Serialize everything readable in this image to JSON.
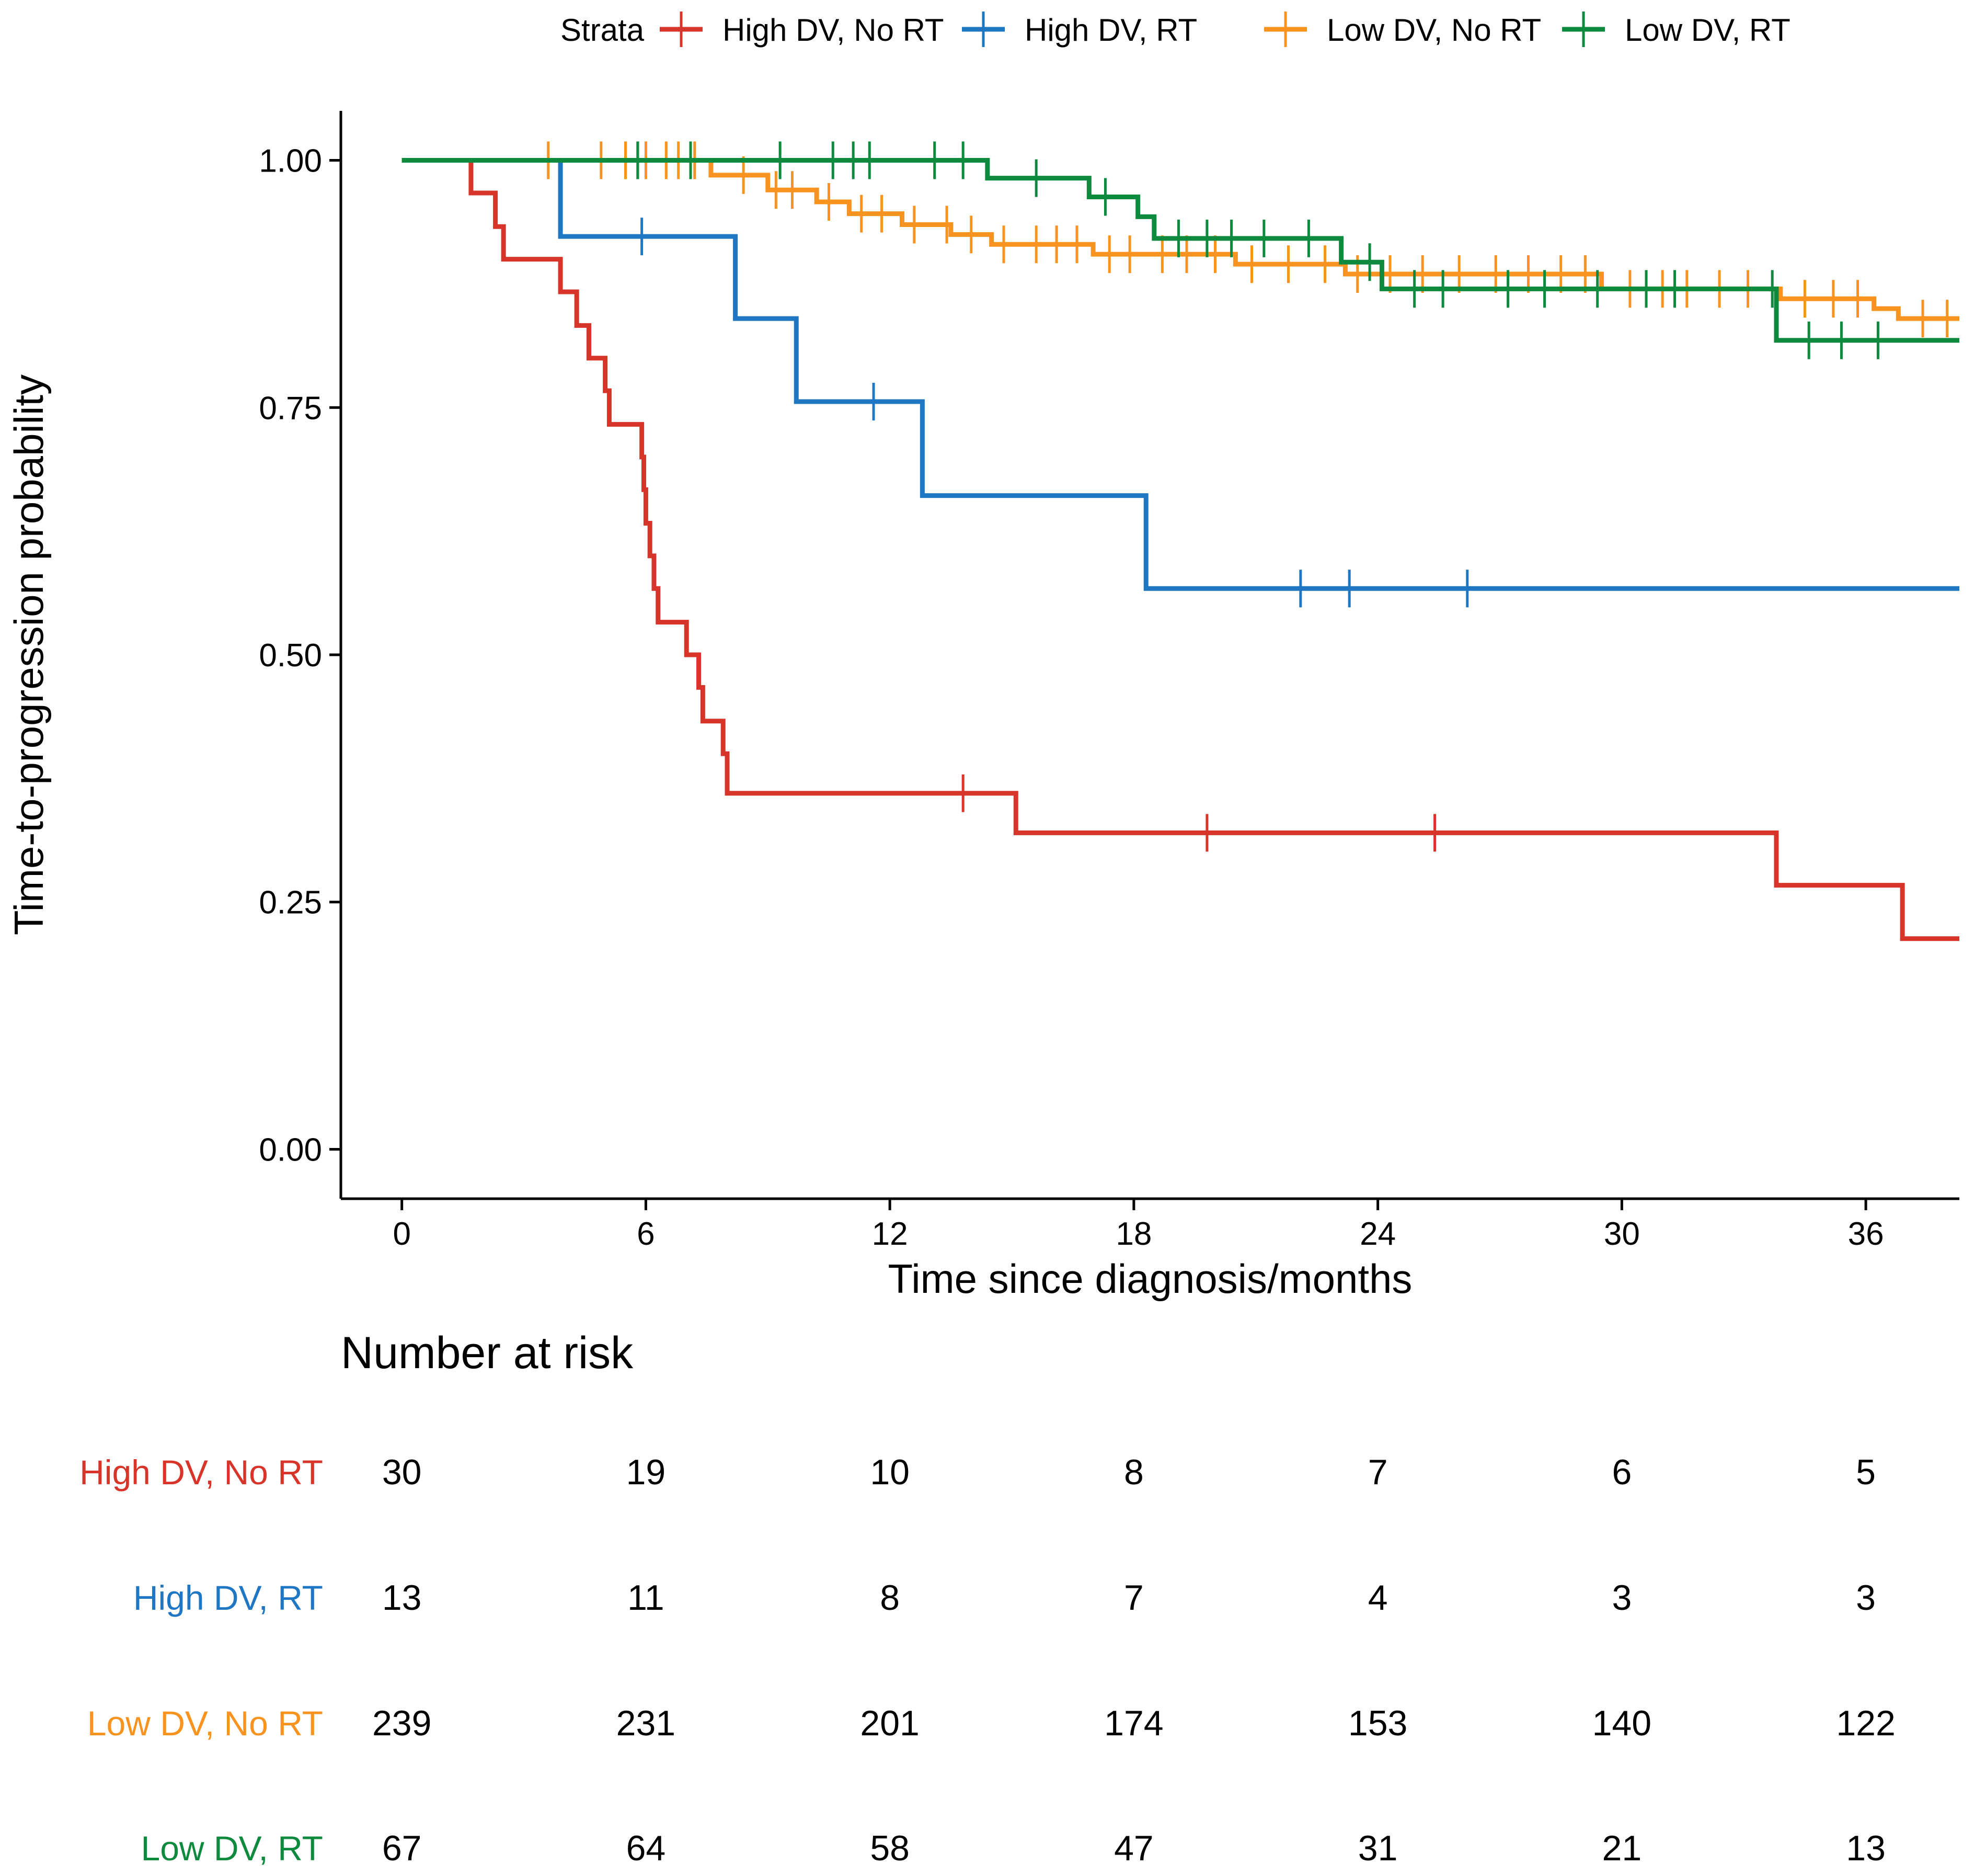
{
  "chart_data": {
    "type": "line",
    "subtype": "kaplan-meier step",
    "title": "",
    "xlabel": "Time since diagnosis/months",
    "ylabel": "Time-to-progression probability",
    "xlim": [
      -1.5,
      38.3
    ],
    "ylim": [
      -0.05,
      1.05
    ],
    "x_ticks": [
      0,
      6,
      12,
      18,
      24,
      30,
      36
    ],
    "y_ticks": [
      0.0,
      0.25,
      0.5,
      0.75,
      1.0
    ],
    "y_tick_labels": [
      "0.00",
      "0.25",
      "0.50",
      "0.75",
      "1.00"
    ],
    "x_tick_labels": [
      "0",
      "6",
      "12",
      "18",
      "24",
      "30",
      "36"
    ],
    "legend": {
      "title": "Strata",
      "position": "top"
    },
    "series": [
      {
        "name": "High DV, No RT",
        "color": "#D7342A",
        "steps": [
          [
            0,
            1.0
          ],
          [
            1.7,
            0.967
          ],
          [
            2.3,
            0.933
          ],
          [
            2.5,
            0.9
          ],
          [
            3.9,
            0.867
          ],
          [
            4.3,
            0.833
          ],
          [
            4.6,
            0.8
          ],
          [
            5.0,
            0.767
          ],
          [
            5.1,
            0.733
          ],
          [
            5.9,
            0.7
          ],
          [
            5.95,
            0.667
          ],
          [
            6.0,
            0.633
          ],
          [
            6.1,
            0.6
          ],
          [
            6.2,
            0.567
          ],
          [
            6.3,
            0.533
          ],
          [
            7.0,
            0.5
          ],
          [
            7.3,
            0.467
          ],
          [
            7.4,
            0.433
          ],
          [
            7.9,
            0.4
          ],
          [
            8.0,
            0.36
          ],
          [
            15.1,
            0.32
          ],
          [
            33.8,
            0.267
          ],
          [
            36.9,
            0.213
          ],
          [
            38.3,
            0.213
          ]
        ],
        "censor_times": [
          13.8,
          19.8,
          25.4
        ]
      },
      {
        "name": "High DV, RT",
        "color": "#1F77C4",
        "steps": [
          [
            0,
            1.0
          ],
          [
            3.9,
            0.923
          ],
          [
            8.2,
            0.84
          ],
          [
            9.7,
            0.756
          ],
          [
            12.8,
            0.661
          ],
          [
            18.3,
            0.567
          ],
          [
            38.3,
            0.567
          ]
        ],
        "censor_times": [
          5.9,
          11.6,
          22.1,
          23.3,
          26.2
        ]
      },
      {
        "name": "Low DV, No RT",
        "color": "#F7931E",
        "steps": [
          [
            0,
            1.0
          ],
          [
            7.6,
            0.985
          ],
          [
            9.0,
            0.97
          ],
          [
            10.2,
            0.958
          ],
          [
            11.0,
            0.946
          ],
          [
            12.3,
            0.935
          ],
          [
            13.5,
            0.925
          ],
          [
            14.5,
            0.915
          ],
          [
            17.0,
            0.905
          ],
          [
            20.5,
            0.895
          ],
          [
            23.2,
            0.885
          ],
          [
            29.5,
            0.87
          ],
          [
            33.9,
            0.86
          ],
          [
            36.2,
            0.85
          ],
          [
            36.8,
            0.84
          ],
          [
            38.3,
            0.84
          ]
        ],
        "censor_times": [
          3.6,
          4.9,
          5.5,
          5.8,
          6.0,
          6.5,
          6.8,
          7.2,
          8.4,
          9.2,
          9.6,
          10.5,
          11.3,
          11.8,
          12.6,
          13.4,
          14.0,
          14.8,
          15.6,
          16.1,
          16.6,
          17.4,
          17.9,
          18.7,
          19.3,
          20.0,
          20.9,
          21.8,
          22.7,
          23.5,
          24.3,
          25.1,
          26.0,
          26.9,
          27.7,
          28.5,
          29.1,
          30.2,
          31.0,
          31.6,
          32.4,
          33.1,
          34.5,
          35.2,
          35.8,
          37.4,
          38.0
        ]
      },
      {
        "name": "Low DV, RT",
        "color": "#0E8A3E",
        "steps": [
          [
            0,
            1.0
          ],
          [
            14.4,
            0.982
          ],
          [
            16.9,
            0.963
          ],
          [
            18.1,
            0.943
          ],
          [
            18.5,
            0.921
          ],
          [
            23.1,
            0.897
          ],
          [
            24.1,
            0.87
          ],
          [
            33.8,
            0.818
          ],
          [
            38.3,
            0.818
          ]
        ],
        "censor_times": [
          5.8,
          7.1,
          9.3,
          10.6,
          11.1,
          11.5,
          13.1,
          13.8,
          15.6,
          17.3,
          19.1,
          19.8,
          20.4,
          21.2,
          22.3,
          23.8,
          24.9,
          25.6,
          27.2,
          28.1,
          29.4,
          30.6,
          31.3,
          33.7,
          34.6,
          35.4,
          36.3
        ]
      }
    ],
    "risk_table": {
      "title": "Number at risk",
      "times": [
        0,
        6,
        12,
        18,
        24,
        30,
        36
      ],
      "rows": [
        {
          "label": "High DV, No RT",
          "color": "#D7342A",
          "values": [
            "30",
            "19",
            "10",
            "8",
            "7",
            "6",
            "5"
          ]
        },
        {
          "label": "High DV, RT",
          "color": "#1F77C4",
          "values": [
            "13",
            "11",
            "8",
            "7",
            "4",
            "3",
            "3"
          ]
        },
        {
          "label": "Low DV, No RT",
          "color": "#F7931E",
          "values": [
            "239",
            "231",
            "201",
            "174",
            "153",
            "140",
            "122"
          ]
        },
        {
          "label": "Low DV, RT",
          "color": "#0E8A3E",
          "values": [
            "67",
            "64",
            "58",
            "47",
            "31",
            "21",
            "13"
          ]
        }
      ]
    }
  }
}
